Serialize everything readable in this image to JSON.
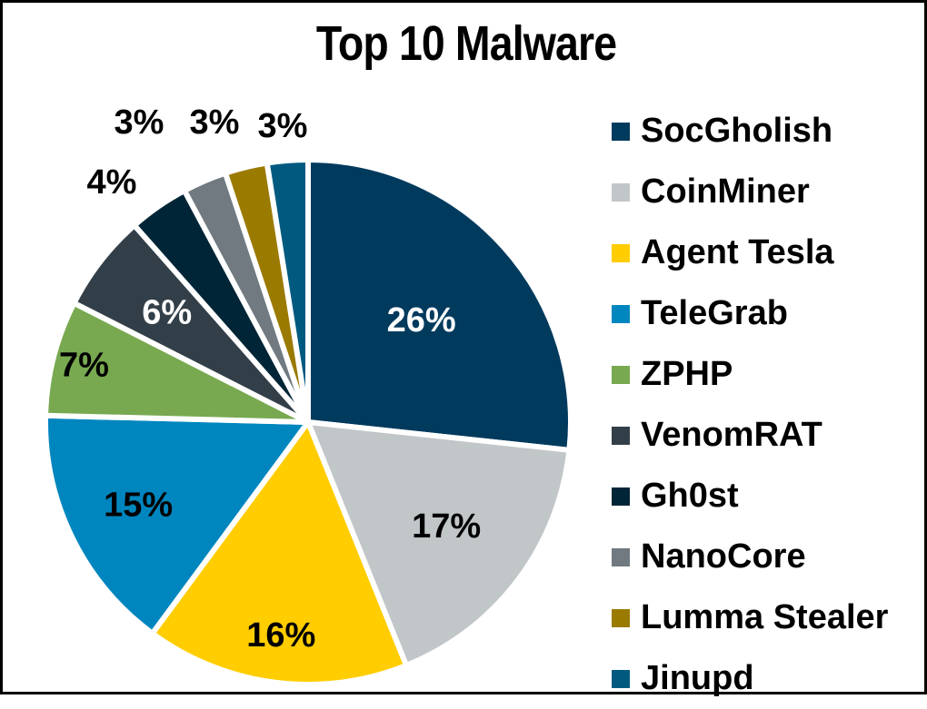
{
  "title": "Top 10 Malware",
  "chart_data": {
    "type": "pie",
    "title": "Top 10 Malware",
    "categories": [
      "SocGholish",
      "CoinMiner",
      "Agent Tesla",
      "TeleGrab",
      "ZPHP",
      "VenomRAT",
      "Gh0st",
      "NanoCore",
      "Lumma Stealer",
      "Jinupd"
    ],
    "values": [
      26,
      17,
      16,
      15,
      7,
      6,
      4,
      3,
      3,
      3
    ],
    "labels": [
      "26%",
      "17%",
      "16%",
      "15%",
      "7%",
      "6%",
      "4%",
      "3%",
      "3%",
      "3%"
    ],
    "colors": [
      "#003a5d",
      "#c1c6c8",
      "#ffcd00",
      "#0086bf",
      "#78a950",
      "#333f48",
      "#002536",
      "#707a80",
      "#9b7a00",
      "#005a80"
    ],
    "label_colors": [
      "#ffffff",
      "#000000",
      "#000000",
      "#000000",
      "#000000",
      "#ffffff",
      "#000000",
      "#000000",
      "#000000",
      "#000000"
    ],
    "start_angle_deg": 0,
    "direction": "clockwise",
    "legend_position": "right"
  },
  "legend": {
    "items": [
      {
        "label": "SocGholish",
        "color": "#003a5d"
      },
      {
        "label": "CoinMiner",
        "color": "#c1c6c8"
      },
      {
        "label": "Agent Tesla",
        "color": "#ffcd00"
      },
      {
        "label": "TeleGrab",
        "color": "#0086bf"
      },
      {
        "label": "ZPHP",
        "color": "#78a950"
      },
      {
        "label": "VenomRAT",
        "color": "#333f48"
      },
      {
        "label": "Gh0st",
        "color": "#002536"
      },
      {
        "label": "NanoCore",
        "color": "#707a80"
      },
      {
        "label": "Lumma Stealer",
        "color": "#9b7a00"
      },
      {
        "label": "Jinupd",
        "color": "#005a80"
      }
    ]
  }
}
